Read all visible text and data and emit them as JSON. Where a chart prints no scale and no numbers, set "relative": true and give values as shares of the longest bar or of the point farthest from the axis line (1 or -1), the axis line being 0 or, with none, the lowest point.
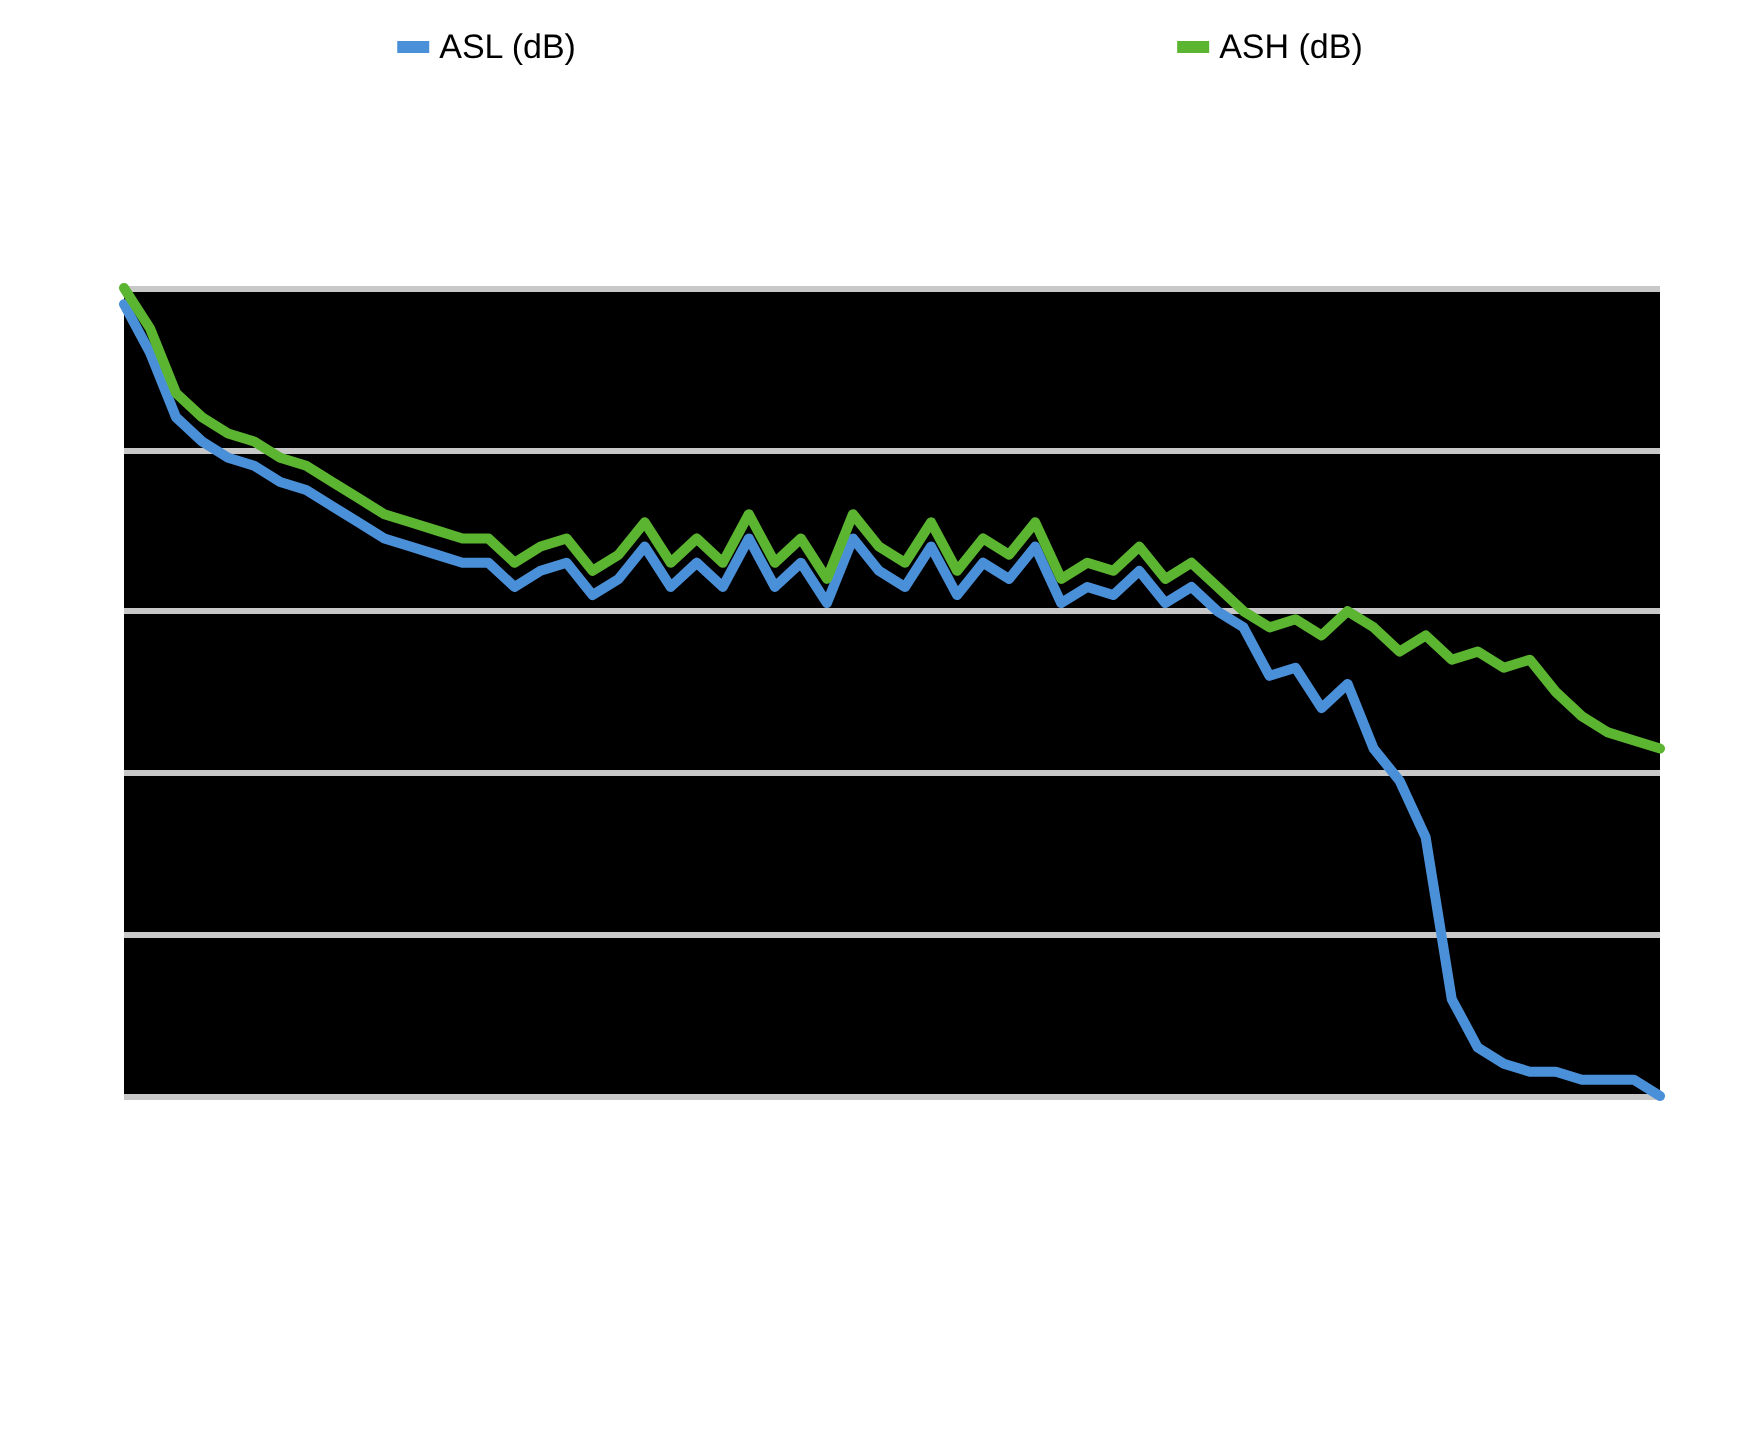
{
  "chart_data": {
    "type": "line",
    "relative": true,
    "grid": "y",
    "legend": "top",
    "categories": [
      null,
      null,
      null,
      null,
      null,
      null,
      null,
      null,
      null,
      null,
      null,
      null,
      null,
      null,
      null,
      null,
      null,
      null,
      null,
      null,
      null,
      null,
      null,
      null,
      null,
      null,
      null,
      null,
      null,
      null,
      null,
      null,
      null,
      null,
      null,
      null,
      null,
      null,
      null,
      null,
      null,
      null,
      null,
      null,
      null,
      null,
      null,
      null,
      null,
      null,
      null,
      null,
      null,
      null,
      null,
      null,
      null,
      null,
      null,
      null
    ],
    "series": [
      {
        "name": "ASL (dB)",
        "color": "#4a90d9",
        "values": [
          0.98,
          0.92,
          0.84,
          0.81,
          0.79,
          0.78,
          0.76,
          0.75,
          0.73,
          0.71,
          0.69,
          0.68,
          0.67,
          0.66,
          0.66,
          0.63,
          0.65,
          0.66,
          0.62,
          0.64,
          0.68,
          0.63,
          0.66,
          0.63,
          0.69,
          0.63,
          0.66,
          0.61,
          0.69,
          0.65,
          0.63,
          0.68,
          0.62,
          0.66,
          0.64,
          0.68,
          0.61,
          0.63,
          0.62,
          0.65,
          0.61,
          0.63,
          0.6,
          0.58,
          0.52,
          0.53,
          0.48,
          0.51,
          0.43,
          0.39,
          0.32,
          0.12,
          0.06,
          0.04,
          0.03,
          0.03,
          0.02,
          0.02,
          0.02,
          0
        ]
      },
      {
        "name": "ASH (dB)",
        "color": "#5cb531",
        "values": [
          1.0,
          0.95,
          0.87,
          0.84,
          0.82,
          0.81,
          0.79,
          0.78,
          0.76,
          0.74,
          0.72,
          0.71,
          0.7,
          0.69,
          0.69,
          0.66,
          0.68,
          0.69,
          0.65,
          0.67,
          0.71,
          0.66,
          0.69,
          0.66,
          0.72,
          0.66,
          0.69,
          0.64,
          0.72,
          0.68,
          0.66,
          0.71,
          0.65,
          0.69,
          0.67,
          0.71,
          0.64,
          0.66,
          0.65,
          0.68,
          0.64,
          0.66,
          0.63,
          0.6,
          0.58,
          0.59,
          0.57,
          0.6,
          0.58,
          0.55,
          0.57,
          0.54,
          0.55,
          0.53,
          0.54,
          0.5,
          0.47,
          0.45,
          0.44,
          0.43
        ]
      }
    ]
  }
}
